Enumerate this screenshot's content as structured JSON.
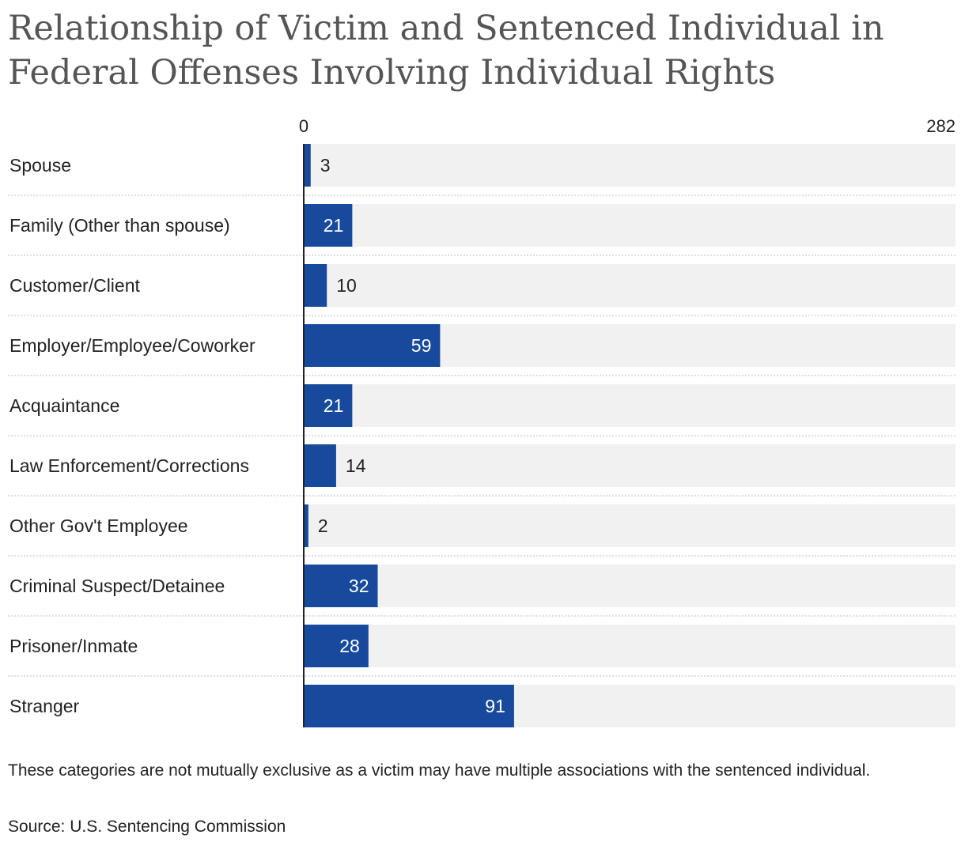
{
  "chart_data": {
    "type": "bar",
    "orientation": "horizontal",
    "title": "Relationship of Victim and Sentenced Individual in Federal Offenses Involving Individual Rights",
    "categories": [
      "Spouse",
      "Family (Other than spouse)",
      "Customer/Client",
      "Employer/Employee/Coworker",
      "Acquaintance",
      "Law Enforcement/Corrections",
      "Other Gov't Employee",
      "Criminal Suspect/Detainee",
      "Prisoner/Inmate",
      "Stranger"
    ],
    "values": [
      3,
      21,
      10,
      59,
      21,
      14,
      2,
      32,
      28,
      91
    ],
    "xlim": [
      0,
      282
    ],
    "x_axis_labels": [
      "0",
      "282"
    ],
    "bar_color": "#174a9c",
    "track_color": "#f1f1f1",
    "note": "These categories are not mutually exclusive as a victim may have multiple associations with the sentenced individual.",
    "source": "Source: U.S. Sentencing Commission"
  }
}
